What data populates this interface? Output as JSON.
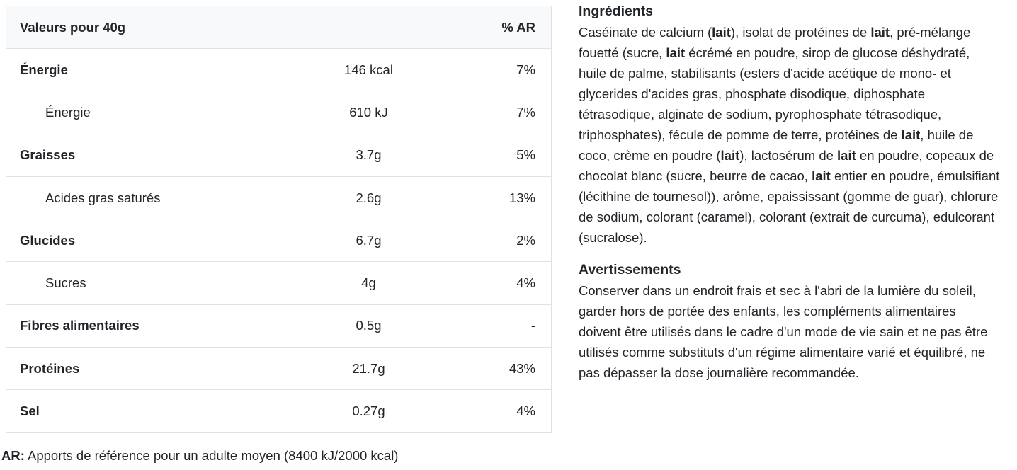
{
  "colors": {
    "background": "#ffffff",
    "text": "#212529",
    "table_border": "#dee2e6",
    "table_header_bg": "#f8f9fa"
  },
  "nutrition_table": {
    "header": {
      "label": "Valeurs pour 40g",
      "ar_label": "% AR"
    },
    "rows": [
      {
        "label": "Énergie",
        "value": "146 kcal",
        "ar": "7%",
        "bold": true,
        "indent": false
      },
      {
        "label": "Énergie",
        "value": "610 kJ",
        "ar": "7%",
        "bold": false,
        "indent": true
      },
      {
        "label": "Graisses",
        "value": "3.7g",
        "ar": "5%",
        "bold": true,
        "indent": false
      },
      {
        "label": "Acides gras saturés",
        "value": "2.6g",
        "ar": "13%",
        "bold": false,
        "indent": true
      },
      {
        "label": "Glucides",
        "value": "6.7g",
        "ar": "2%",
        "bold": true,
        "indent": false
      },
      {
        "label": "Sucres",
        "value": "4g",
        "ar": "4%",
        "bold": false,
        "indent": true
      },
      {
        "label": "Fibres alimentaires",
        "value": "0.5g",
        "ar": "-",
        "bold": true,
        "indent": false
      },
      {
        "label": "Protéines",
        "value": "21.7g",
        "ar": "43%",
        "bold": true,
        "indent": false
      },
      {
        "label": "Sel",
        "value": "0.27g",
        "ar": "4%",
        "bold": true,
        "indent": false
      }
    ],
    "footnote": {
      "prefix": "AR:",
      "text": " Apports de référence pour un adulte moyen (8400 kJ/2000 kcal)"
    }
  },
  "ingredients": {
    "heading": "Ingrédients",
    "segments": [
      {
        "t": "Caséinate de calcium (",
        "b": false
      },
      {
        "t": "lait",
        "b": true
      },
      {
        "t": "), isolat de protéines de ",
        "b": false
      },
      {
        "t": "lait",
        "b": true
      },
      {
        "t": ", pré-mélange fouetté (sucre, ",
        "b": false
      },
      {
        "t": "lait",
        "b": true
      },
      {
        "t": " écrémé en poudre, sirop de glucose déshydraté, huile de palme, stabilisants (esters d'acide acétique de mono- et glycerides d'acides gras, phosphate disodique, diphosphate tétrasodique, alginate de sodium, pyrophosphate tétrasodique, triphosphates), fécule de pomme de terre, protéines de ",
        "b": false
      },
      {
        "t": "lait",
        "b": true
      },
      {
        "t": ", huile de coco, crème en poudre (",
        "b": false
      },
      {
        "t": "lait",
        "b": true
      },
      {
        "t": "), lactosérum de ",
        "b": false
      },
      {
        "t": "lait",
        "b": true
      },
      {
        "t": " en poudre, copeaux de chocolat blanc (sucre, beurre de cacao, ",
        "b": false
      },
      {
        "t": "lait",
        "b": true
      },
      {
        "t": " entier en poudre, émulsifiant (lécithine de tournesol)), arôme, epaississant (gomme de guar), chlorure de sodium, colorant (caramel), colorant (extrait de curcuma), edulcorant (sucralose).",
        "b": false
      }
    ]
  },
  "warnings": {
    "heading": "Avertissements",
    "text": "Conserver dans un endroit frais et sec à l'abri de la lumière du soleil, garder hors de portée des enfants, les compléments alimentaires doivent être utilisés dans le cadre d'un mode de vie sain et ne pas être utilisés comme substituts d'un régime alimentaire varié et équilibré, ne pas dépasser la dose journalière recommandée."
  }
}
